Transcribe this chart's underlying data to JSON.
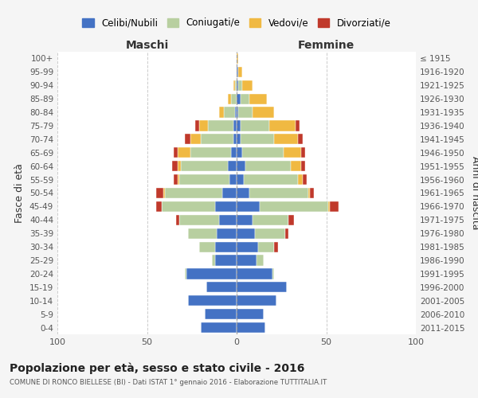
{
  "age_groups": [
    "0-4",
    "5-9",
    "10-14",
    "15-19",
    "20-24",
    "25-29",
    "30-34",
    "35-39",
    "40-44",
    "45-49",
    "50-54",
    "55-59",
    "60-64",
    "65-69",
    "70-74",
    "75-79",
    "80-84",
    "85-89",
    "90-94",
    "95-99",
    "100+"
  ],
  "birth_years": [
    "2011-2015",
    "2006-2010",
    "2001-2005",
    "1996-2000",
    "1991-1995",
    "1986-1990",
    "1981-1985",
    "1976-1980",
    "1971-1975",
    "1966-1970",
    "1961-1965",
    "1956-1960",
    "1951-1955",
    "1946-1950",
    "1941-1945",
    "1936-1940",
    "1931-1935",
    "1926-1930",
    "1921-1925",
    "1916-1920",
    "≤ 1915"
  ],
  "colors": {
    "celibi": "#4472c4",
    "coniugati": "#b8cfa0",
    "vedovi": "#f0b942",
    "divorziati": "#c0392b"
  },
  "maschi": {
    "celibi": [
      20,
      18,
      27,
      17,
      28,
      12,
      12,
      11,
      10,
      12,
      8,
      4,
      5,
      3,
      2,
      2,
      1,
      0,
      0,
      0,
      0
    ],
    "coniugati": [
      0,
      0,
      0,
      0,
      1,
      2,
      9,
      16,
      22,
      30,
      32,
      28,
      26,
      23,
      18,
      14,
      6,
      3,
      1,
      0,
      0
    ],
    "vedovi": [
      0,
      0,
      0,
      0,
      0,
      0,
      0,
      0,
      0,
      0,
      1,
      1,
      2,
      7,
      6,
      5,
      3,
      2,
      1,
      0,
      0
    ],
    "divorziati": [
      0,
      0,
      0,
      0,
      0,
      0,
      0,
      0,
      2,
      3,
      4,
      2,
      3,
      2,
      3,
      2,
      0,
      0,
      0,
      0,
      0
    ]
  },
  "femmine": {
    "celibi": [
      16,
      15,
      22,
      28,
      20,
      11,
      12,
      10,
      9,
      13,
      7,
      4,
      5,
      3,
      2,
      2,
      1,
      2,
      1,
      1,
      0
    ],
    "coniugati": [
      0,
      0,
      0,
      0,
      1,
      4,
      9,
      17,
      20,
      38,
      33,
      30,
      25,
      23,
      19,
      16,
      8,
      5,
      2,
      0,
      0
    ],
    "vedovi": [
      0,
      0,
      0,
      0,
      0,
      0,
      0,
      0,
      0,
      1,
      1,
      3,
      6,
      10,
      13,
      15,
      12,
      10,
      6,
      2,
      1
    ],
    "divorziati": [
      0,
      0,
      0,
      0,
      0,
      0,
      2,
      2,
      3,
      5,
      2,
      2,
      2,
      2,
      3,
      2,
      0,
      0,
      0,
      0,
      0
    ]
  },
  "xlim": 100,
  "title": "Popolazione per età, sesso e stato civile - 2016",
  "subtitle": "COMUNE DI RONCO BIELLESE (BI) - Dati ISTAT 1° gennaio 2016 - Elaborazione TUTTITALIA.IT",
  "ylabel_left": "Fasce di età",
  "ylabel_right": "Anni di nascita",
  "xlabel_maschi": "Maschi",
  "xlabel_femmine": "Femmine",
  "legend_labels": [
    "Celibi/Nubili",
    "Coniugati/e",
    "Vedovi/e",
    "Divorziati/e"
  ],
  "bg_color": "#f5f5f5",
  "plot_bg_color": "#ffffff"
}
